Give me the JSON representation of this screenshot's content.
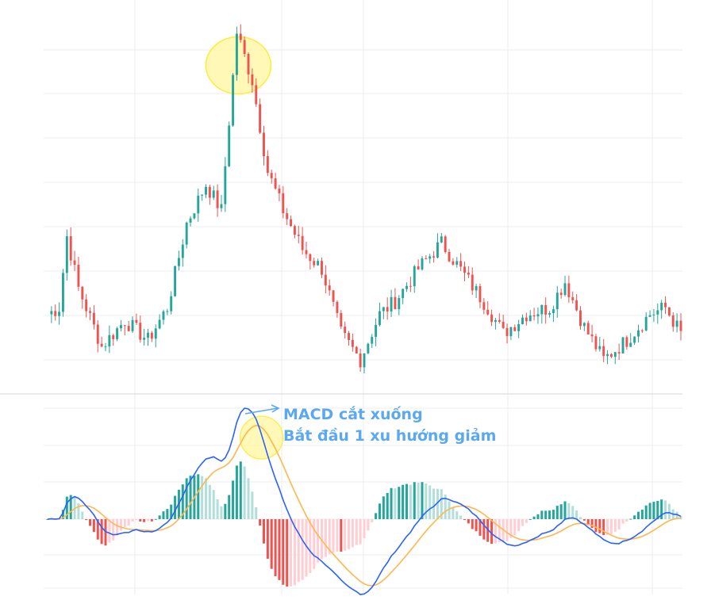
{
  "annotation": {
    "line1": "MACD cắt xuống",
    "line2": "Bắt đầu 1 xu hướng giảm",
    "color": "#5aa9f0"
  },
  "colors": {
    "up": "#26a69a",
    "down": "#ef5350",
    "hist_up_strong": "#26a69a",
    "hist_up_weak": "#b2dfdb",
    "hist_down_strong": "#ef5350",
    "hist_down_weak": "#ffcdd2",
    "macd": "#2962ff",
    "signal": "#ffb74d",
    "highlight_fill": "#fff59d",
    "highlight_stroke": "#ffeb3b",
    "grid": "#eeeeee",
    "separator": "#dddddd"
  },
  "chart_data": [
    {
      "type": "candlestick",
      "title": "",
      "axes_labels_visible": false,
      "grid": true,
      "highlight": "ellipse around the price peak",
      "seed": 7,
      "anchors": [
        [
          0,
          0.18
        ],
        [
          3,
          0.2
        ],
        [
          5,
          0.42
        ],
        [
          8,
          0.26
        ],
        [
          14,
          0.08
        ],
        [
          20,
          0.16
        ],
        [
          26,
          0.1
        ],
        [
          31,
          0.2
        ],
        [
          36,
          0.46
        ],
        [
          41,
          0.58
        ],
        [
          45,
          0.5
        ],
        [
          49,
          1.05
        ],
        [
          53,
          0.9
        ],
        [
          57,
          0.62
        ],
        [
          61,
          0.5
        ],
        [
          66,
          0.38
        ],
        [
          71,
          0.32
        ],
        [
          76,
          0.12
        ],
        [
          81,
          0.04
        ],
        [
          86,
          0.18
        ],
        [
          90,
          0.22
        ],
        [
          96,
          0.32
        ],
        [
          102,
          0.4
        ],
        [
          108,
          0.3
        ],
        [
          114,
          0.2
        ],
        [
          118,
          0.12
        ],
        [
          124,
          0.18
        ],
        [
          130,
          0.2
        ],
        [
          134,
          0.28
        ],
        [
          139,
          0.14
        ],
        [
          144,
          0.04
        ],
        [
          150,
          0.1
        ],
        [
          156,
          0.18
        ],
        [
          160,
          0.2
        ],
        [
          164,
          0.12
        ]
      ]
    },
    {
      "type": "macd",
      "series": [
        {
          "name": "MACD",
          "values": []
        },
        {
          "name": "Signal",
          "values": []
        },
        {
          "name": "Histogram",
          "values": []
        }
      ],
      "highlight": "circle at MACD / signal bearish crossover"
    }
  ]
}
